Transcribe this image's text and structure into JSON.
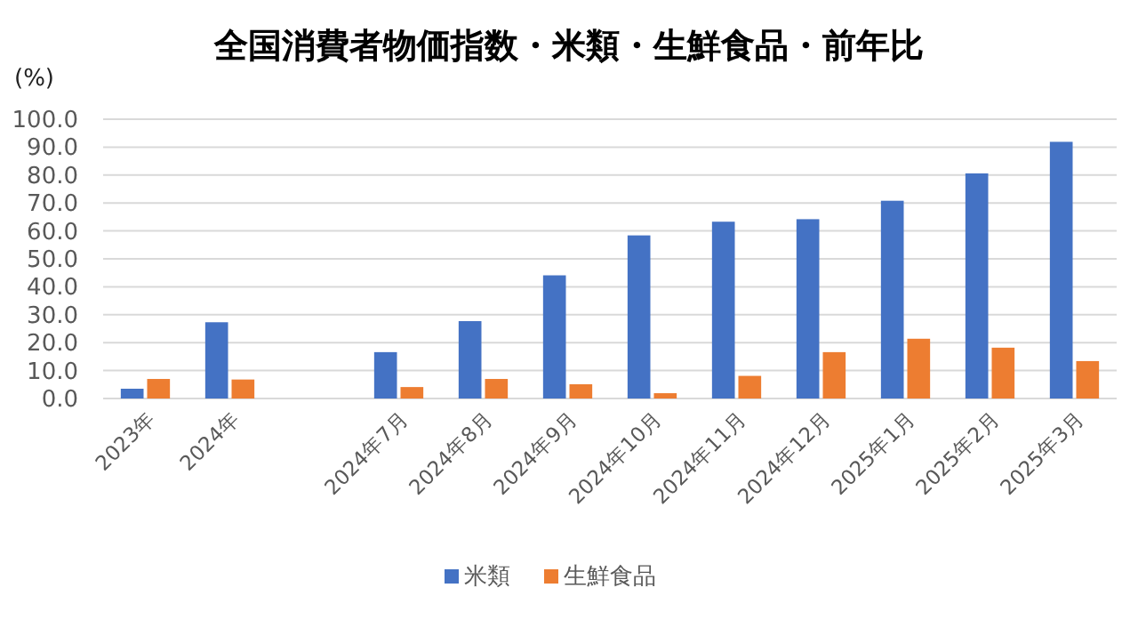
{
  "chart_data": {
    "type": "bar",
    "title": "全国消費者物価指数・米類・生鮮食品・前年比",
    "ylabel": "(%)",
    "categories": [
      "2023年",
      "2024年",
      null,
      "2024年7月",
      "2024年8月",
      "2024年9月",
      "2024年10月",
      "2024年11月",
      "2024年12月",
      "2025年1月",
      "2025年2月",
      "2025年3月"
    ],
    "series": [
      {
        "name": "米類",
        "color": "#4472c4",
        "values": [
          3.5,
          27.3,
          null,
          16.6,
          27.7,
          44.1,
          58.4,
          63.3,
          64.2,
          70.8,
          80.6,
          91.9
        ]
      },
      {
        "name": "生鮮食品",
        "color": "#ed7d31",
        "values": [
          7.0,
          6.8,
          null,
          4.1,
          7.0,
          5.1,
          1.9,
          8.1,
          16.6,
          21.4,
          18.2,
          13.4
        ]
      }
    ],
    "ylim": [
      0,
      100
    ],
    "yticks": [
      {
        "value": 0,
        "label": "0.0"
      },
      {
        "value": 10,
        "label": "10.0"
      },
      {
        "value": 20,
        "label": "20.0"
      },
      {
        "value": 30,
        "label": "30.0"
      },
      {
        "value": 40,
        "label": "40.0"
      },
      {
        "value": 50,
        "label": "50.0"
      },
      {
        "value": 60,
        "label": "60.0"
      },
      {
        "value": 70,
        "label": "70.0"
      },
      {
        "value": 80,
        "label": "80.0"
      },
      {
        "value": 90,
        "label": "90.0"
      },
      {
        "value": 100,
        "label": "100.0"
      }
    ],
    "grid": "y",
    "legend": "bottom"
  }
}
